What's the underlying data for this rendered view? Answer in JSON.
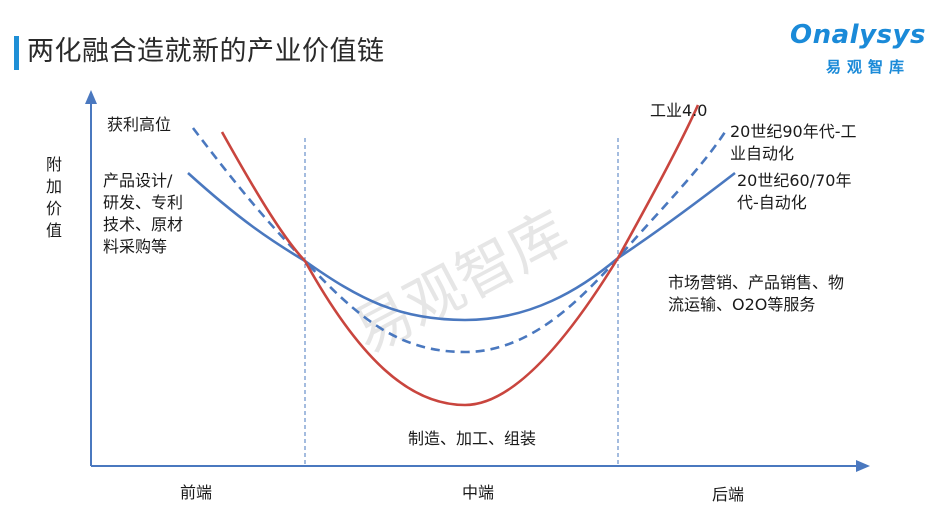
{
  "header": {
    "title": "两化融合造就新的产业价值链",
    "accent_color": "#1f8fd6"
  },
  "logo": {
    "main": "Onalysys",
    "sub": "易观智库",
    "color": "#1a8ad8"
  },
  "watermark": "易观智库",
  "axis": {
    "y_label_chars": [
      "附",
      "加",
      "价",
      "值"
    ],
    "x_sections": [
      "前端",
      "中端",
      "后端"
    ]
  },
  "annotations": {
    "top_left": "获利高位",
    "left_activities": [
      "产品设计/",
      "研发、专利",
      "技术、原材",
      "料采购等"
    ],
    "bottom_middle": "制造、加工、组装",
    "right_services": [
      "市场营销、产品销售、物",
      "流运输、O2O等服务"
    ]
  },
  "legend_labels": {
    "red": "工业4.0",
    "dashed": [
      "20世纪90年代-工",
      "业自动化"
    ],
    "solid_blue": [
      "20世纪60/70年",
      "代-自动化"
    ]
  },
  "colors": {
    "red_curve": "#c9453e",
    "blue_curve": "#4a78bf",
    "axis": "#4a78bf",
    "divider": "#4a78bf"
  }
}
